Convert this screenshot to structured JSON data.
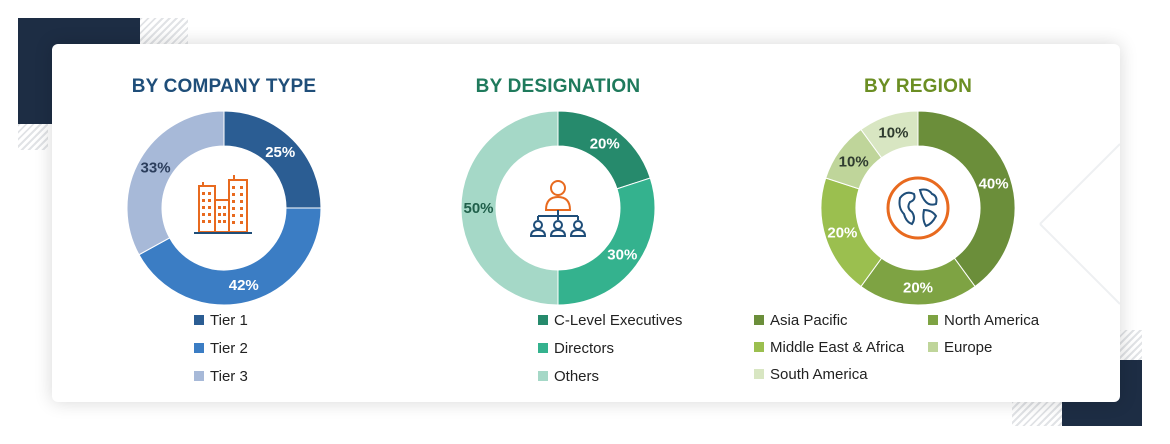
{
  "chart_data": [
    {
      "type": "pie",
      "title": "BY COMPANY TYPE",
      "title_color": "#1f4e79",
      "categories": [
        "Tier 1",
        "Tier 2",
        "Tier 3"
      ],
      "values": [
        25,
        42,
        33
      ],
      "labels": [
        "25%",
        "42%",
        "33%"
      ],
      "colors": [
        "#2b5d93",
        "#3b7dc4",
        "#a7b9d8"
      ],
      "icon": "buildings-icon",
      "icon_color": "#e86a1f",
      "legend_position": "bottom"
    },
    {
      "type": "pie",
      "title": "BY DESIGNATION",
      "title_color": "#1f7a5c",
      "categories": [
        "C-Level Executives",
        "Directors",
        "Others"
      ],
      "values": [
        20,
        30,
        50
      ],
      "labels": [
        "20%",
        "30%",
        "50%"
      ],
      "colors": [
        "#268a6c",
        "#34b28e",
        "#a5d8c7"
      ],
      "icon": "organization-chart-icon",
      "icon_color": "#e86a1f",
      "icon_color_2": "#1f4e79",
      "legend_position": "bottom"
    },
    {
      "type": "pie",
      "title": "BY REGION",
      "title_color": "#6b8e23",
      "categories": [
        "Asia Pacific",
        "North America",
        "Middle East & Africa",
        "Europe",
        "South America"
      ],
      "values": [
        40,
        20,
        20,
        10,
        10
      ],
      "labels": [
        "40%",
        "20%",
        "20%",
        "10%",
        "10%"
      ],
      "colors": [
        "#6b8e3a",
        "#7ea343",
        "#9bbf4f",
        "#bfd59a",
        "#d8e6c2"
      ],
      "icon": "globe-icon",
      "icon_color": "#e86a1f",
      "icon_color_2": "#1f4e79",
      "legend_position": "bottom"
    }
  ]
}
